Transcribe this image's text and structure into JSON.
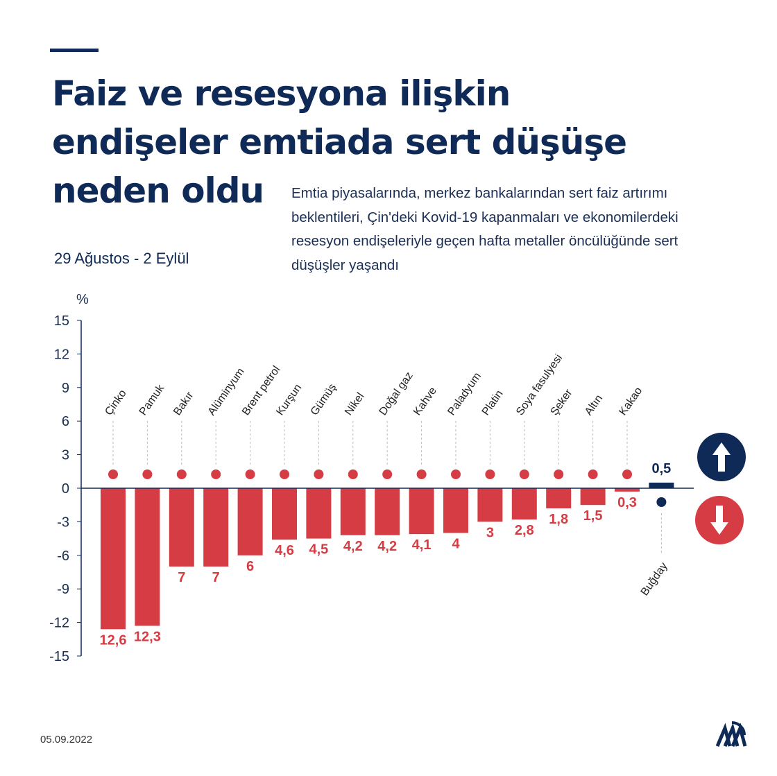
{
  "title": "Faiz ve resesyona ilişkin endişeler emtiada sert düşüşe neden oldu",
  "title_lines": [
    "Faiz ve resesyona ilişkin",
    "endişeler emtiada sert düşüşe",
    "neden oldu"
  ],
  "description": "Emtia piyasalarında, merkez bankalarından sert faiz artırımı beklentileri, Çin'deki Kovid-19 kapanmaları ve ekonomilerdeki resesyon endişeleriyle geçen hafta metaller öncülüğünde sert düşüşler yaşandı",
  "date_range": "29 Ağustos - 2 Eylül",
  "footer_date": "05.09.2022",
  "logo": "AA",
  "colors": {
    "navy": "#0f2a56",
    "red": "#d63c43"
  },
  "chart_data": {
    "type": "bar",
    "ylabel": "%",
    "ylim": [
      -15,
      15
    ],
    "yticks": [
      15,
      12,
      9,
      6,
      3,
      0,
      -3,
      -6,
      -9,
      -12,
      -15
    ],
    "categories": [
      "Çinko",
      "Pamuk",
      "Bakır",
      "Alüminyum",
      "Brent petrol",
      "Kurşun",
      "Gümüş",
      "Nikel",
      "Doğal gaz",
      "Kahve",
      "Paladyum",
      "Platin",
      "Soya fasulyesi",
      "Şeker",
      "Altın",
      "Kakao",
      "Buğday"
    ],
    "values": [
      -12.6,
      -12.3,
      -7,
      -7,
      -6,
      -4.6,
      -4.5,
      -4.2,
      -4.2,
      -4.1,
      -4,
      -3,
      -2.8,
      -1.8,
      -1.5,
      -0.3,
      0.5
    ],
    "data_labels": [
      "12,6",
      "12,3",
      "7",
      "7",
      "6",
      "4,6",
      "4,5",
      "4,2",
      "4,2",
      "4,1",
      "4",
      "3",
      "2,8",
      "1,8",
      "1,5",
      "0,3",
      "0,5"
    ],
    "icons": [
      "metal-ingot-icon",
      "cotton-icon",
      "metal-ingot-icon",
      "metal-ingot-icon",
      "oil-barrel-icon",
      "metal-ingot-icon",
      "metal-ingot-icon",
      "metal-ingot-icon",
      "flame-icon",
      "coffee-bean-icon",
      "metal-ingot-icon",
      "metal-ingot-icon",
      "soybean-icon",
      "sugar-sack-icon",
      "metal-ingot-icon",
      "cocoa-icon",
      "wheat-icon"
    ],
    "legend": {
      "up": "arrow-up-icon",
      "down": "arrow-down-icon"
    },
    "grid": false
  }
}
